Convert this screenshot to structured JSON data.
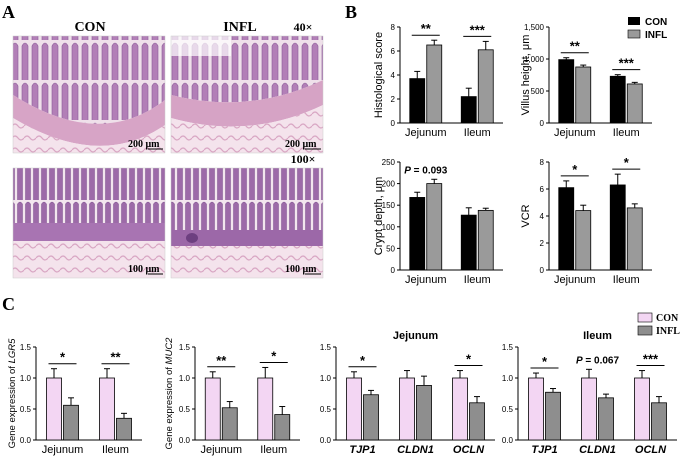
{
  "panels": {
    "a": "A",
    "b": "B",
    "c": "C"
  },
  "micrographs": {
    "group_labels": [
      "CON",
      "INFL"
    ],
    "mag_top": "40×",
    "mag_bottom": "100×",
    "scale_top": "200 μm",
    "scale_bottom": "100 μm"
  },
  "colors": {
    "con_b": "#000000",
    "infl_b": "#9a9a9a",
    "con_c": "#f3d6f3",
    "infl_c": "#8e8e8e"
  },
  "legend_b": [
    "CON",
    "INFL"
  ],
  "legend_c": [
    "CON",
    "INFL"
  ],
  "chart_data": [
    {
      "id": "hist",
      "type": "bar",
      "ylabel": "Histological score",
      "categories": [
        "Jejunum",
        "Ileum"
      ],
      "ylim": [
        0,
        8
      ],
      "yticks": [
        "0",
        "2",
        "4",
        "6",
        "8"
      ],
      "series": [
        {
          "name": "CON",
          "values": [
            3.7,
            2.2
          ],
          "err": [
            0.6,
            0.7
          ]
        },
        {
          "name": "INFL",
          "values": [
            6.5,
            6.1
          ],
          "err": [
            0.4,
            0.7
          ]
        }
      ],
      "annotations": [
        "**",
        "***"
      ]
    },
    {
      "id": "villus",
      "type": "bar",
      "ylabel": "Villus height, μm",
      "categories": [
        "Jejunum",
        "Ileum"
      ],
      "ylim": [
        0,
        1500
      ],
      "yticks": [
        "0",
        "500",
        "1,000",
        "1,500"
      ],
      "series": [
        {
          "name": "CON",
          "values": [
            990,
            730
          ],
          "err": [
            30,
            25
          ]
        },
        {
          "name": "INFL",
          "values": [
            875,
            610
          ],
          "err": [
            30,
            25
          ]
        }
      ],
      "annotations": [
        "**",
        "***"
      ]
    },
    {
      "id": "crypt",
      "type": "bar",
      "ylabel": "Crypt depth, μm",
      "categories": [
        "Jejunum",
        "Ileum"
      ],
      "ylim": [
        0,
        250
      ],
      "yticks": [
        "0",
        "50",
        "100",
        "150",
        "200",
        "250"
      ],
      "series": [
        {
          "name": "CON",
          "values": [
            168,
            127
          ],
          "err": [
            12,
            17
          ]
        },
        {
          "name": "INFL",
          "values": [
            200,
            138
          ],
          "err": [
            10,
            5
          ]
        }
      ],
      "annotations": [
        "P = 0.093",
        ""
      ]
    },
    {
      "id": "vcr",
      "type": "bar",
      "ylabel": "VCR",
      "categories": [
        "Jejunum",
        "Ileum"
      ],
      "ylim": [
        0,
        8
      ],
      "yticks": [
        "0",
        "2",
        "4",
        "6",
        "8"
      ],
      "series": [
        {
          "name": "CON",
          "values": [
            6.1,
            6.3
          ],
          "err": [
            0.5,
            0.8
          ]
        },
        {
          "name": "INFL",
          "values": [
            4.4,
            4.6
          ],
          "err": [
            0.4,
            0.3
          ]
        }
      ],
      "annotations": [
        "*",
        "*"
      ]
    },
    {
      "id": "lgr5",
      "type": "bar",
      "ylabel": "Gene expression of LGR5",
      "categories": [
        "Jejunum",
        "Ileum"
      ],
      "ylim": [
        0,
        1.5
      ],
      "yticks": [
        "0.0",
        "0.5",
        "1.0",
        "1.5"
      ],
      "series": [
        {
          "name": "CON",
          "values": [
            1.0,
            1.0
          ],
          "err": [
            0.15,
            0.15
          ]
        },
        {
          "name": "INFL",
          "values": [
            0.56,
            0.35
          ],
          "err": [
            0.12,
            0.08
          ]
        }
      ],
      "annotations": [
        "*",
        "**"
      ]
    },
    {
      "id": "muc2",
      "type": "bar",
      "ylabel": "Gene expression of MUC2",
      "categories": [
        "Jejunum",
        "Ileum"
      ],
      "ylim": [
        0,
        1.5
      ],
      "yticks": [
        "0.0",
        "0.5",
        "1.0",
        "1.5"
      ],
      "series": [
        {
          "name": "CON",
          "values": [
            1.0,
            1.0
          ],
          "err": [
            0.1,
            0.17
          ]
        },
        {
          "name": "INFL",
          "values": [
            0.52,
            0.41
          ],
          "err": [
            0.1,
            0.13
          ]
        }
      ],
      "annotations": [
        "**",
        "*"
      ]
    },
    {
      "id": "jej",
      "type": "bar",
      "title": "Jejunum",
      "categories": [
        "TJP1",
        "CLDN1",
        "OCLN"
      ],
      "ylim": [
        0,
        1.5
      ],
      "yticks": [
        "0.0",
        "0.5",
        "1.0",
        "1.5"
      ],
      "series": [
        {
          "name": "CON",
          "values": [
            1.0,
            1.0,
            1.0
          ],
          "err": [
            0.1,
            0.12,
            0.12
          ]
        },
        {
          "name": "INFL",
          "values": [
            0.73,
            0.88,
            0.6
          ],
          "err": [
            0.07,
            0.15,
            0.1
          ]
        }
      ],
      "annotations": [
        "*",
        "",
        "*"
      ]
    },
    {
      "id": "ile",
      "type": "bar",
      "title": "Ileum",
      "categories": [
        "TJP1",
        "CLDN1",
        "OCLN"
      ],
      "ylim": [
        0,
        1.5
      ],
      "yticks": [
        "0.0",
        "0.5",
        "1.0",
        "1.5"
      ],
      "series": [
        {
          "name": "CON",
          "values": [
            1.0,
            1.0,
            1.0
          ],
          "err": [
            0.08,
            0.14,
            0.12
          ]
        },
        {
          "name": "INFL",
          "values": [
            0.77,
            0.68,
            0.6
          ],
          "err": [
            0.06,
            0.06,
            0.1
          ]
        }
      ],
      "annotations": [
        "*",
        "P = 0.067",
        "***"
      ]
    }
  ]
}
